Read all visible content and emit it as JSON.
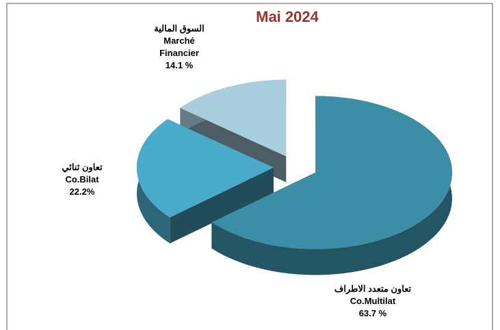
{
  "chart_data": {
    "type": "pie3d",
    "title": "Mai 2024",
    "categories": [
      "Co.Multilat",
      "Co.Bilat",
      "Marché Financier"
    ],
    "arabic_labels": [
      "تعاون متعدد الاطراف",
      "تعاون ثنائي",
      "السوق المالية"
    ],
    "values": [
      63.7,
      22.2,
      14.1
    ],
    "value_labels": [
      "63.7 %",
      "22.2%",
      "14.1 %"
    ],
    "colors": [
      "#3b8ea6",
      "#4aaac9",
      "#a9cfdf"
    ]
  }
}
